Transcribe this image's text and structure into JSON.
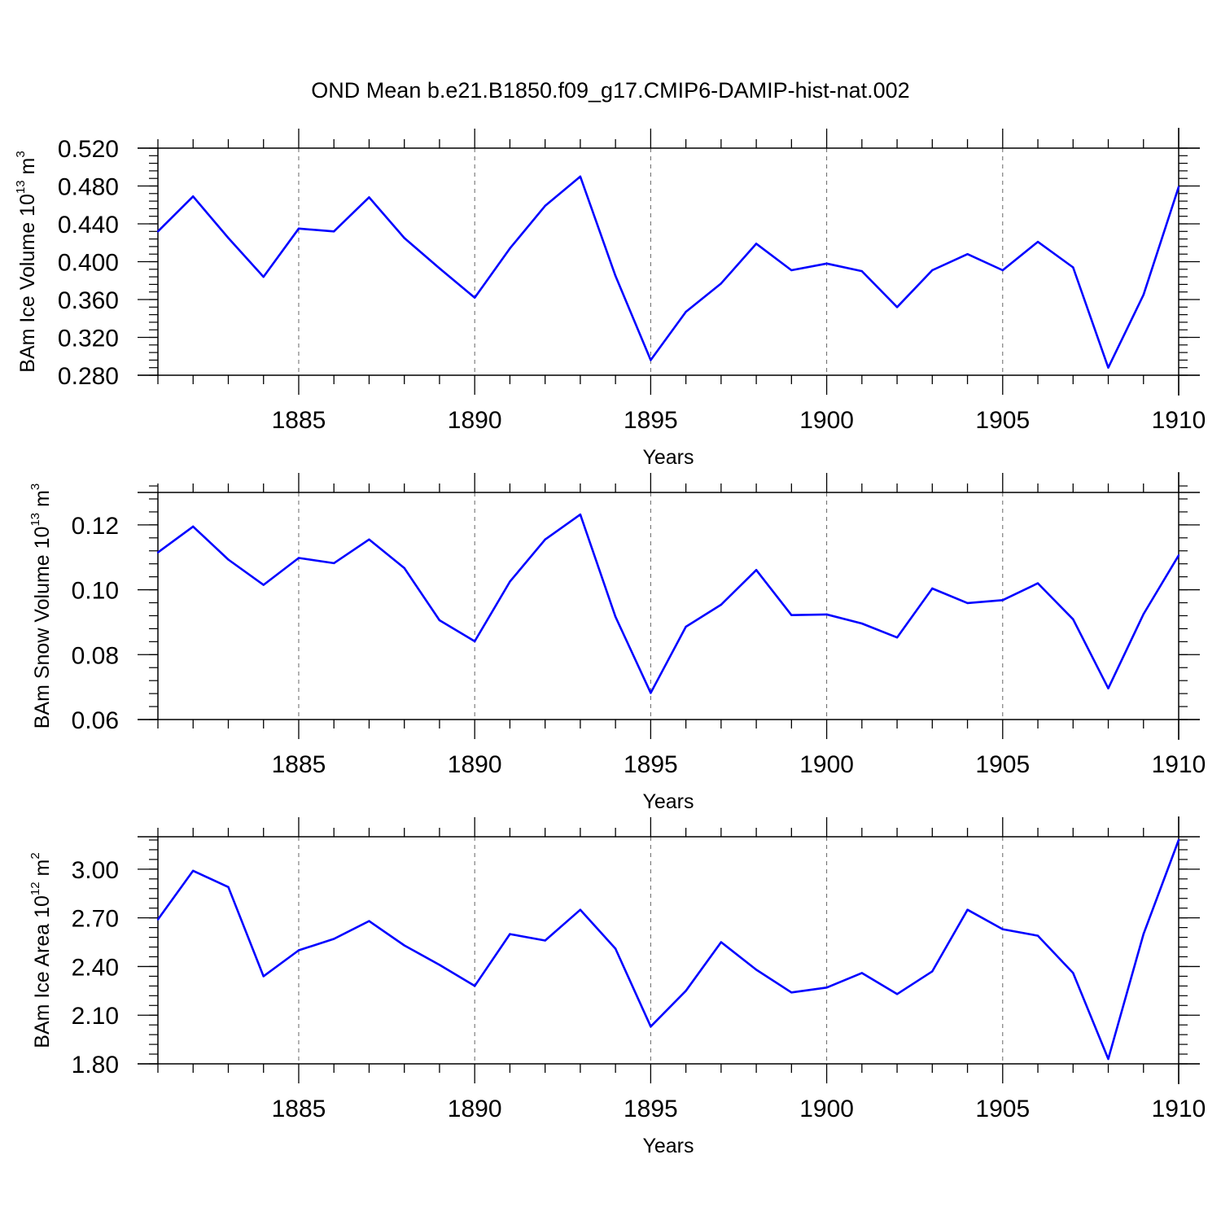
{
  "title": "OND Mean b.e21.B1850.f09_g17.CMIP6-DAMIP-hist-nat.002",
  "colors": {
    "series": "#0000ff",
    "axis": "#000000",
    "grid": "#666666"
  },
  "chart_data": [
    {
      "type": "line",
      "title": "",
      "ylabel": {
        "base": "BAm Ice Volume 10",
        "exponent": "13",
        "unit": " m",
        "unit_exponent": "3"
      },
      "xlabel": "Years",
      "xlim": [
        1881,
        1910
      ],
      "ylim": [
        0.28,
        0.52
      ],
      "ytick_values": [
        0.28,
        0.32,
        0.36,
        0.4,
        0.44,
        0.48,
        0.52
      ],
      "yticks": [
        "0.280",
        "0.320",
        "0.360",
        "0.400",
        "0.440",
        "0.480",
        "0.520"
      ],
      "ytick_minor_step": 0.008,
      "xtick_values": [
        1885,
        1890,
        1895,
        1900,
        1905,
        1910
      ],
      "xticks": [
        "1885",
        "1890",
        "1895",
        "1900",
        "1905",
        "1910"
      ],
      "x": [
        1881,
        1882,
        1883,
        1884,
        1885,
        1886,
        1887,
        1888,
        1889,
        1890,
        1891,
        1892,
        1893,
        1894,
        1895,
        1896,
        1897,
        1898,
        1899,
        1900,
        1901,
        1902,
        1903,
        1904,
        1905,
        1906,
        1907,
        1908,
        1909,
        1910
      ],
      "series": [
        {
          "values": [
            0.432,
            0.469,
            0.425,
            0.384,
            0.435,
            0.432,
            0.468,
            0.425,
            0.393,
            0.362,
            0.414,
            0.459,
            0.49,
            0.385,
            0.296,
            0.347,
            0.377,
            0.419,
            0.391,
            0.398,
            0.39,
            0.352,
            0.391,
            0.408,
            0.391,
            0.421,
            0.394,
            0.288,
            0.365,
            0.479
          ]
        }
      ],
      "grid": "dashed vertical at major x ticks"
    },
    {
      "type": "line",
      "title": "",
      "ylabel": {
        "base": "BAm Snow Volume 10",
        "exponent": "13",
        "unit": " m",
        "unit_exponent": "3"
      },
      "xlabel": "Years",
      "xlim": [
        1881,
        1910
      ],
      "ylim": [
        0.06,
        0.13
      ],
      "ytick_values": [
        0.06,
        0.08,
        0.1,
        0.12
      ],
      "yticks": [
        "0.06",
        "0.08",
        "0.10",
        "0.12"
      ],
      "ytick_minor_step": 0.004,
      "xtick_values": [
        1885,
        1890,
        1895,
        1900,
        1905,
        1910
      ],
      "xticks": [
        "1885",
        "1890",
        "1895",
        "1900",
        "1905",
        "1910"
      ],
      "x": [
        1881,
        1882,
        1883,
        1884,
        1885,
        1886,
        1887,
        1888,
        1889,
        1890,
        1891,
        1892,
        1893,
        1894,
        1895,
        1896,
        1897,
        1898,
        1899,
        1900,
        1901,
        1902,
        1903,
        1904,
        1905,
        1906,
        1907,
        1908,
        1909,
        1910
      ],
      "series": [
        {
          "values": [
            0.1115,
            0.1195,
            0.1093,
            0.1015,
            0.1098,
            0.1082,
            0.1155,
            0.1067,
            0.0906,
            0.0841,
            0.1025,
            0.1155,
            0.1232,
            0.0917,
            0.0682,
            0.0886,
            0.0954,
            0.1061,
            0.0922,
            0.0924,
            0.0896,
            0.0853,
            0.1004,
            0.0959,
            0.0968,
            0.102,
            0.0909,
            0.0696,
            0.0925,
            0.1106
          ]
        }
      ],
      "grid": "dashed vertical at major x ticks"
    },
    {
      "type": "line",
      "title": "",
      "ylabel": {
        "base": "BAm Ice Area 10",
        "exponent": "12",
        "unit": " m",
        "unit_exponent": "2"
      },
      "xlabel": "Years",
      "xlim": [
        1881,
        1910
      ],
      "ylim": [
        1.8,
        3.2
      ],
      "ytick_values": [
        1.8,
        2.1,
        2.4,
        2.7,
        3.0
      ],
      "yticks": [
        "1.80",
        "2.10",
        "2.40",
        "2.70",
        "3.00"
      ],
      "ytick_minor_step": 0.06,
      "xtick_values": [
        1885,
        1890,
        1895,
        1900,
        1905,
        1910
      ],
      "xticks": [
        "1885",
        "1890",
        "1895",
        "1900",
        "1905",
        "1910"
      ],
      "x": [
        1881,
        1882,
        1883,
        1884,
        1885,
        1886,
        1887,
        1888,
        1889,
        1890,
        1891,
        1892,
        1893,
        1894,
        1895,
        1896,
        1897,
        1898,
        1899,
        1900,
        1901,
        1902,
        1903,
        1904,
        1905,
        1906,
        1907,
        1908,
        1909,
        1910
      ],
      "series": [
        {
          "values": [
            2.69,
            2.99,
            2.89,
            2.34,
            2.5,
            2.57,
            2.68,
            2.53,
            2.41,
            2.28,
            2.6,
            2.56,
            2.75,
            2.51,
            2.03,
            2.25,
            2.55,
            2.38,
            2.24,
            2.27,
            2.36,
            2.23,
            2.37,
            2.75,
            2.63,
            2.59,
            2.36,
            1.83,
            2.6,
            3.18
          ]
        }
      ],
      "grid": "dashed vertical at major x ticks"
    }
  ]
}
